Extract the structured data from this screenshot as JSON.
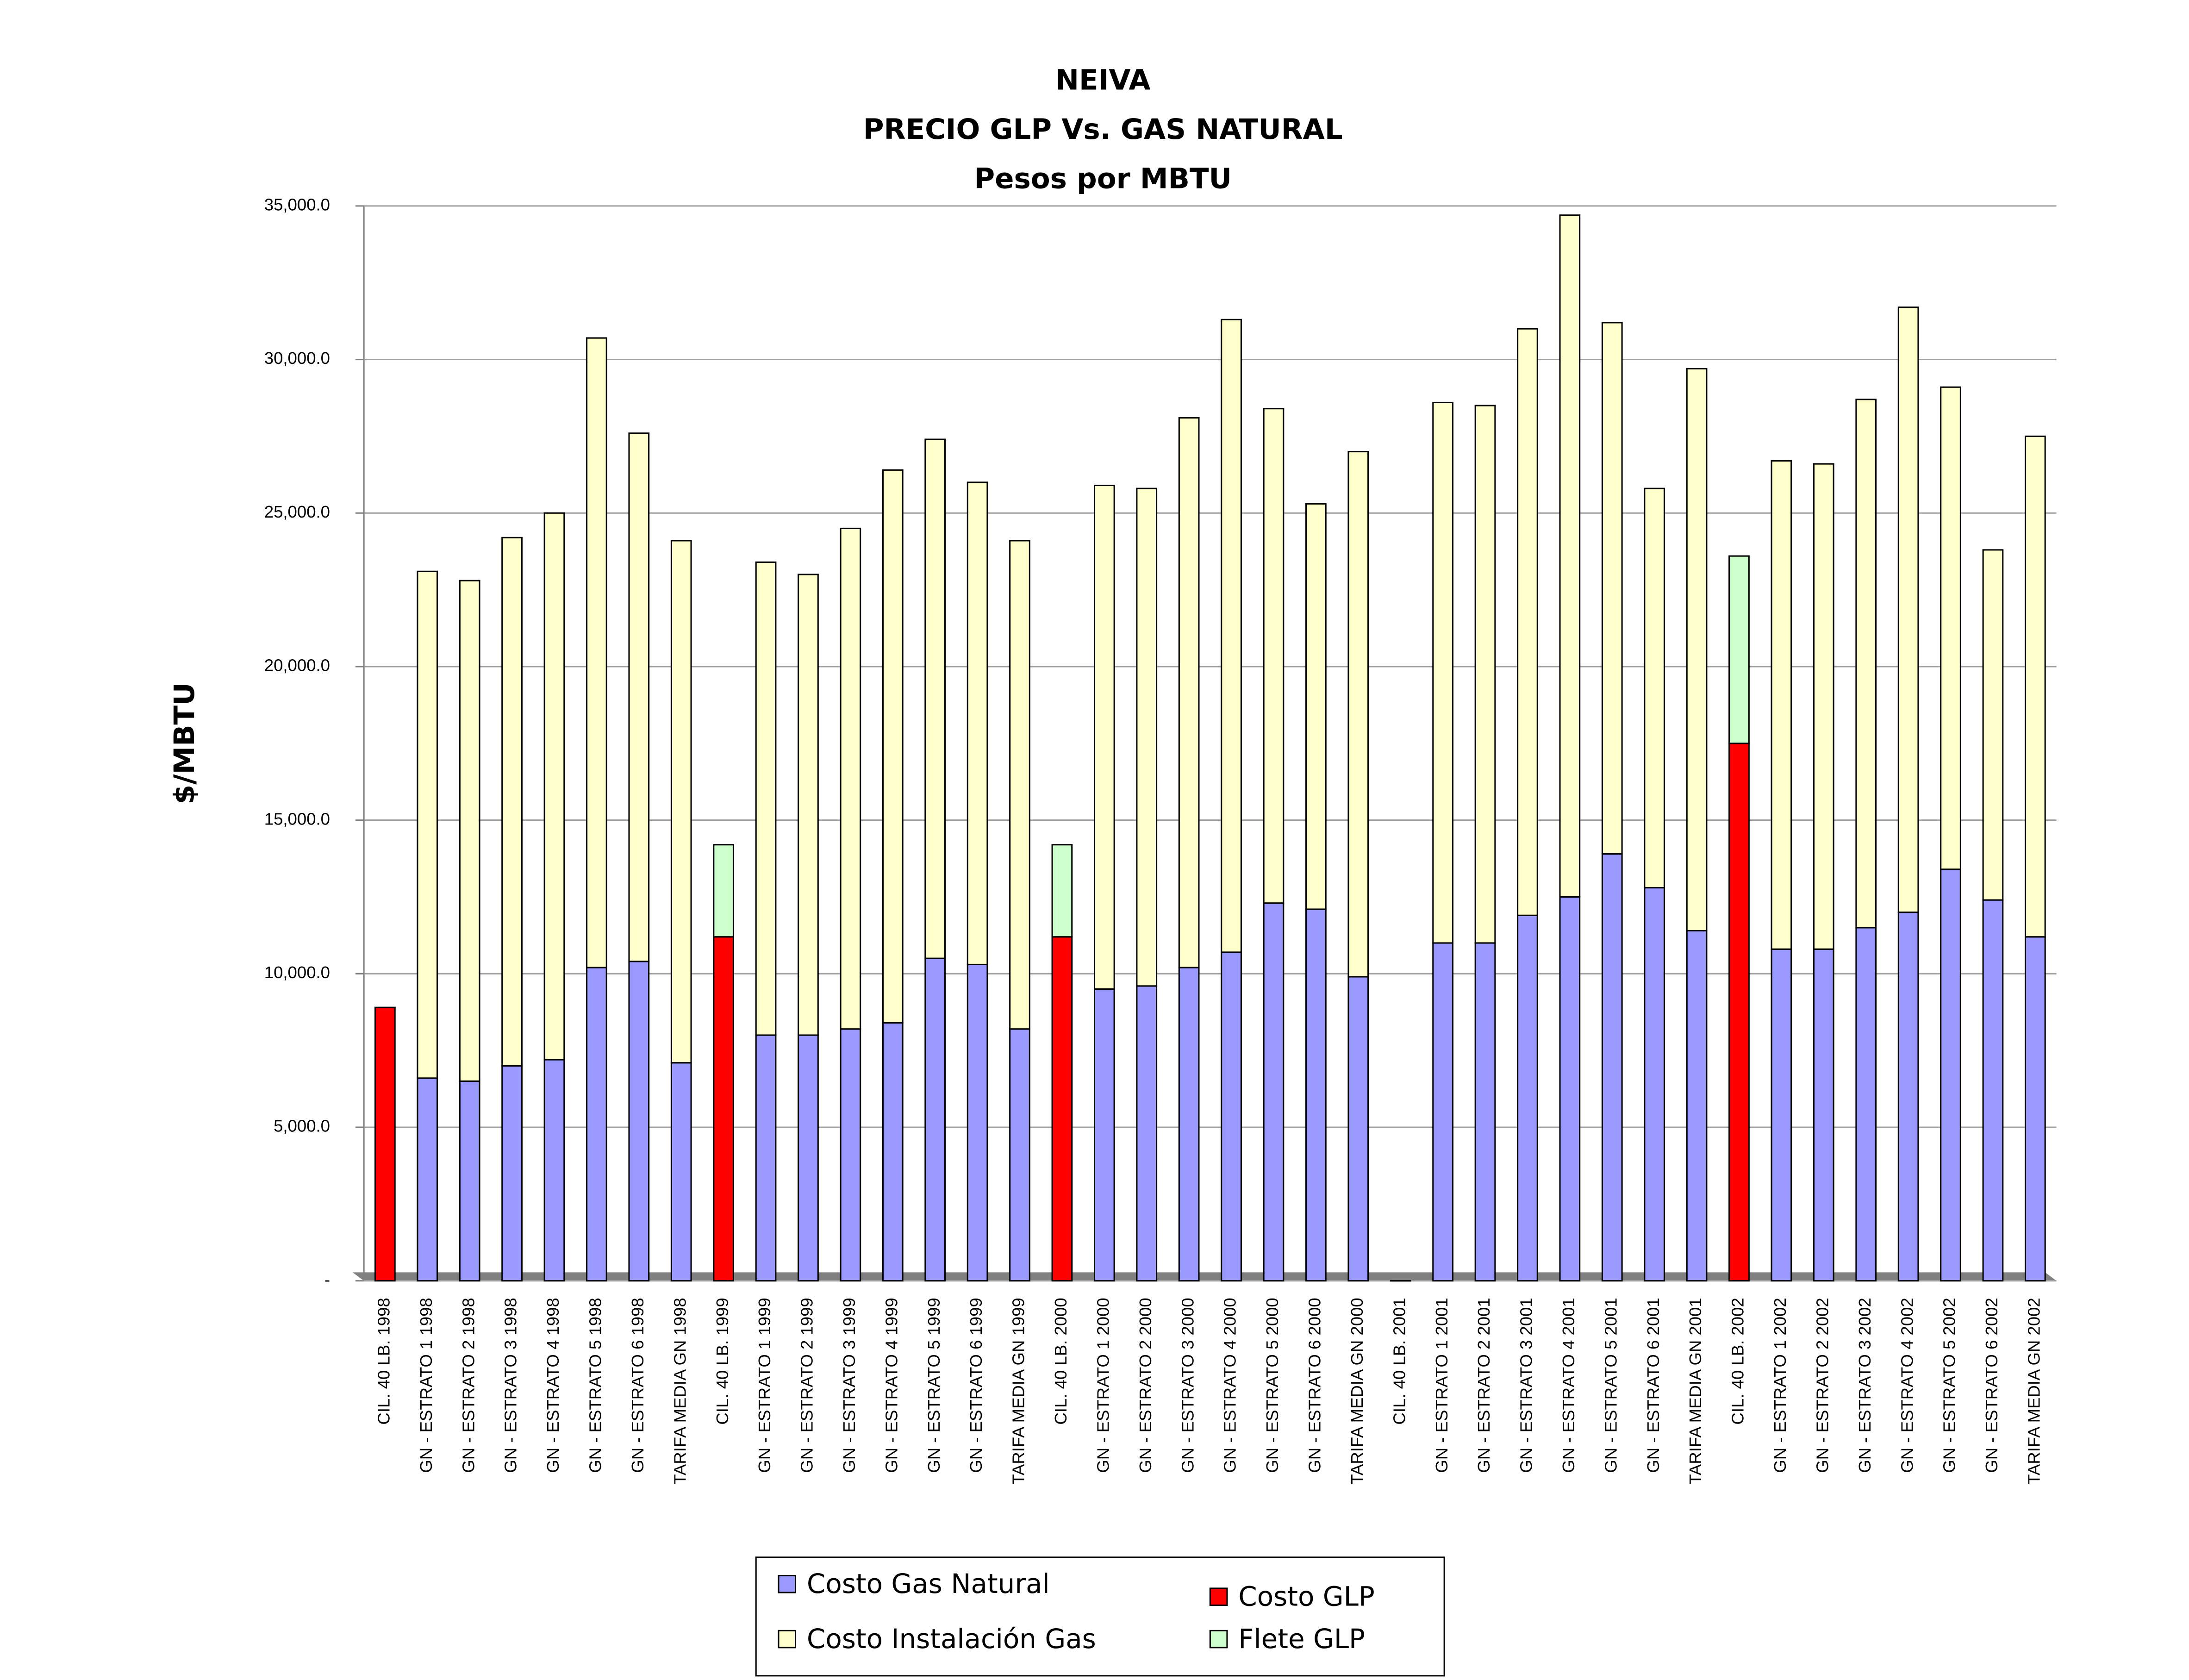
{
  "chart_data": {
    "type": "stacked-bar",
    "title": [
      "NEIVA",
      "PRECIO GLP Vs. GAS NATURAL",
      "Pesos por MBTU"
    ],
    "y_label": "$/MBTU",
    "categories": [
      "CIL. 40 LB. 1998",
      "GN - ESTRATO 1 1998",
      "GN - ESTRATO 2 1998",
      "GN - ESTRATO 3 1998",
      "GN - ESTRATO 4 1998",
      "GN - ESTRATO 5 1998",
      "GN - ESTRATO 6 1998",
      "TARIFA MEDIA GN 1998",
      "CIL. 40 LB. 1999",
      "GN - ESTRATO 1 1999",
      "GN - ESTRATO 2 1999",
      "GN - ESTRATO 3 1999",
      "GN - ESTRATO 4 1999",
      "GN - ESTRATO 5 1999",
      "GN - ESTRATO 6 1999",
      "TARIFA MEDIA GN 1999",
      "CIL. 40 LB. 2000",
      "GN - ESTRATO 1 2000",
      "GN - ESTRATO 2 2000",
      "GN - ESTRATO 3 2000",
      "GN - ESTRATO 4 2000",
      "GN - ESTRATO 5 2000",
      "GN - ESTRATO 6 2000",
      "TARIFA MEDIA GN 2000",
      "CIL. 40 LB. 2001",
      "GN - ESTRATO 1 2001",
      "GN - ESTRATO 2 2001",
      "GN - ESTRATO 3 2001",
      "GN - ESTRATO 4 2001",
      "GN - ESTRATO 5 2001",
      "GN - ESTRATO 6 2001",
      "TARIFA MEDIA GN 2001",
      "CIL. 40 LB. 2002",
      "GN - ESTRATO 1 2002",
      "GN - ESTRATO 2 2002",
      "GN - ESTRATO 3 2002",
      "GN - ESTRATO 4 2002",
      "GN - ESTRATO 5 2002",
      "GN - ESTRATO 6 2002",
      "TARIFA MEDIA GN 2002"
    ],
    "series": [
      {
        "name": "Costo Gas Natural",
        "color": "#9999ff",
        "values": [
          null,
          6600,
          6500,
          7000,
          7200,
          10200,
          10400,
          7100,
          null,
          8000,
          8000,
          8200,
          8400,
          10500,
          10300,
          8200,
          null,
          9500,
          9600,
          10200,
          10700,
          12300,
          12100,
          9900,
          null,
          11000,
          11000,
          11900,
          12500,
          13900,
          12800,
          11400,
          null,
          10800,
          10800,
          11500,
          12000,
          13400,
          12400,
          11200
        ]
      },
      {
        "name": "Costo GLP",
        "color": "#ff0000",
        "values": [
          8900,
          null,
          null,
          null,
          null,
          null,
          null,
          null,
          11200,
          null,
          null,
          null,
          null,
          null,
          null,
          null,
          11200,
          null,
          null,
          null,
          null,
          null,
          null,
          null,
          0,
          null,
          null,
          null,
          null,
          null,
          null,
          null,
          17500,
          null,
          null,
          null,
          null,
          null,
          null,
          null
        ]
      },
      {
        "name": "Costo Instalación Gas",
        "color": "#ffffcc",
        "values": [
          null,
          16500,
          16300,
          17200,
          17800,
          20500,
          17200,
          17000,
          null,
          15400,
          15000,
          16300,
          18000,
          16900,
          15700,
          15900,
          null,
          16400,
          16200,
          17900,
          20600,
          16100,
          13200,
          17100,
          null,
          17600,
          17500,
          19100,
          22200,
          17300,
          13000,
          18300,
          null,
          15900,
          15800,
          17200,
          19700,
          15700,
          11400,
          16300
        ]
      },
      {
        "name": "Flete GLP",
        "color": "#ccffcc",
        "values": [
          0,
          null,
          null,
          null,
          null,
          null,
          null,
          null,
          3000,
          null,
          null,
          null,
          null,
          null,
          null,
          null,
          3000,
          null,
          null,
          null,
          null,
          null,
          null,
          null,
          0,
          null,
          null,
          null,
          null,
          null,
          null,
          null,
          6100,
          null,
          null,
          null,
          null,
          null,
          null,
          null
        ]
      }
    ],
    "ylim": [
      0,
      35000
    ],
    "yticks": [
      {
        "value": 0,
        "label": "-"
      },
      {
        "value": 5000,
        "label": "5,000.0"
      },
      {
        "value": 10000,
        "label": "10,000.0"
      },
      {
        "value": 15000,
        "label": "15,000.0"
      },
      {
        "value": 20000,
        "label": "20,000.0"
      },
      {
        "value": 25000,
        "label": "25,000.0"
      },
      {
        "value": 30000,
        "label": "30,000.0"
      },
      {
        "value": 35000,
        "label": "35,000.0"
      }
    ],
    "grid": true
  }
}
